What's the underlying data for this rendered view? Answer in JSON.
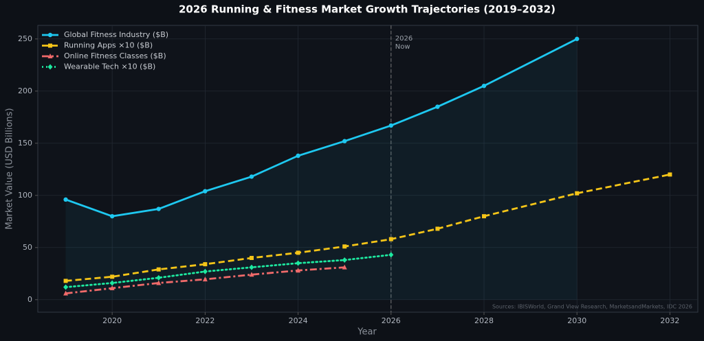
{
  "chart_data": {
    "type": "line",
    "title": "2026 Running & Fitness Market Growth Trajectories (2019–2032)",
    "x_label": "Year",
    "y_label": "Market Value (USD Billions)",
    "xlim": [
      2018.4,
      2032.6
    ],
    "xticks": [
      2020,
      2022,
      2024,
      2026,
      2028,
      2030,
      2032
    ],
    "ylim": [
      -12,
      263
    ],
    "yticks": [
      0,
      50,
      100,
      150,
      200,
      250
    ],
    "grid": true,
    "legend": "upper left",
    "series": [
      {
        "name": "Global Fitness Industry ($B)",
        "color": "#1ec8f0",
        "linestyle": "solid",
        "marker": "circle",
        "fill": true,
        "x": [
          2019,
          2020,
          2021,
          2022,
          2023,
          2024,
          2025,
          2026,
          2027,
          2028,
          2030
        ],
        "values": [
          96,
          80,
          87,
          104,
          118,
          138,
          152,
          167,
          185,
          205,
          250
        ]
      },
      {
        "name": "Running Apps ×10 ($B)",
        "color": "#f5c518",
        "linestyle": "dashed",
        "marker": "square",
        "x": [
          2019,
          2020,
          2021,
          2022,
          2023,
          2024,
          2025,
          2026,
          2027,
          2028,
          2030,
          2032
        ],
        "values": [
          18,
          22,
          29,
          34,
          40,
          45,
          51,
          58,
          68,
          80,
          102,
          120
        ]
      },
      {
        "name": "Online Fitness Classes ($B)",
        "color": "#f06a6a",
        "linestyle": "dashdot",
        "marker": "triangle",
        "x": [
          2019,
          2020,
          2021,
          2022,
          2023,
          2024,
          2025
        ],
        "values": [
          6,
          11,
          16,
          19.5,
          24,
          28,
          31
        ]
      },
      {
        "name": "Wearable Tech ×10 ($B)",
        "color": "#1de9a0",
        "linestyle": "dotted",
        "marker": "diamond",
        "x": [
          2019,
          2020,
          2021,
          2022,
          2023,
          2024,
          2025,
          2026
        ],
        "values": [
          12,
          16,
          21,
          27,
          31,
          35,
          38,
          43
        ]
      }
    ],
    "vline": {
      "x": 2026,
      "label": [
        "2026",
        "Now"
      ]
    },
    "source": "Sources: IBISWorld, Grand View Research, MarketsandMarkets, IDC 2026"
  }
}
